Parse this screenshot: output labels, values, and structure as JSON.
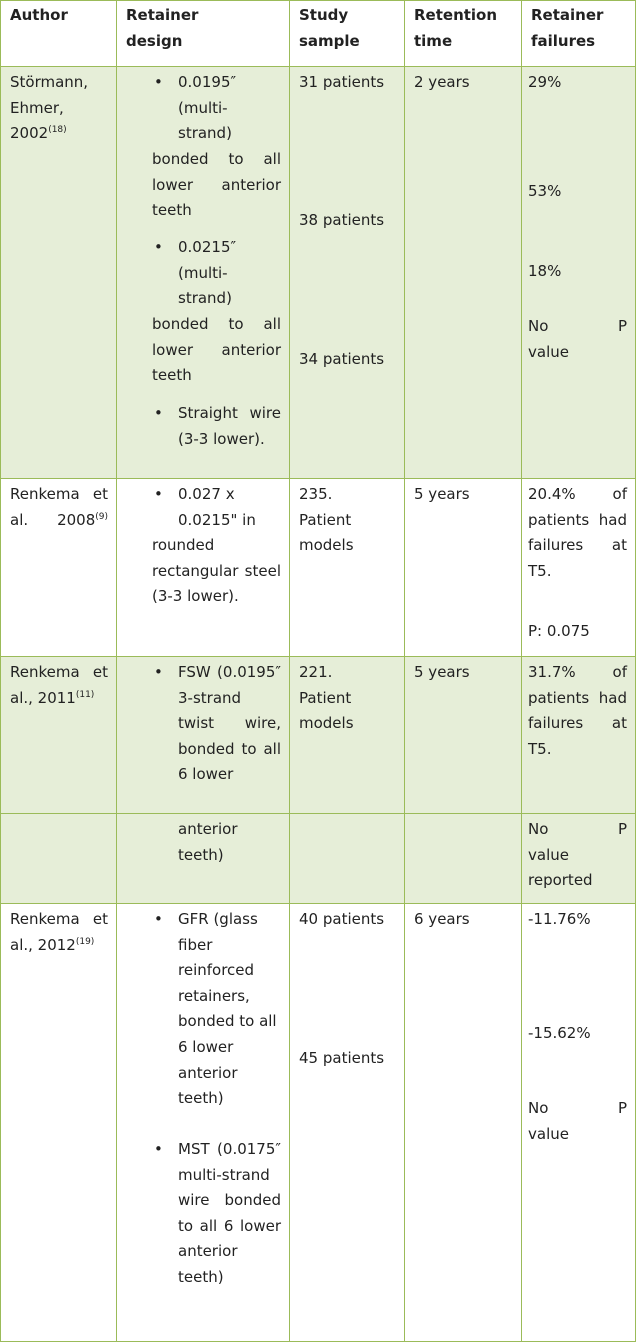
{
  "colors": {
    "border": "#9bbb59",
    "row_fill": "#e6eed8"
  },
  "headers": [
    "Author",
    "Retainer design",
    "Study sample",
    "Retention time",
    "Retainer failures"
  ],
  "rows": [
    {
      "author": "Störmann, Ehmer, 2002",
      "ref": "(18)",
      "design": [
        "0.0195″ (multi-strand)",
        "bonded to all lower anterior teeth",
        "0.0215″ (multi-strand)",
        "bonded to all lower anterior teeth",
        "Straight wire (3-3 lower)."
      ],
      "sample": [
        "31 patients",
        "38 patients",
        "34 patients"
      ],
      "time": "2 years",
      "failures": [
        "29%",
        "53%",
        "18%",
        "No P value"
      ]
    },
    {
      "author": "Renkema et al. 2008",
      "ref": "(9)",
      "design": [
        "0.027 x 0.0215\" in",
        "rounded rectangular steel (3-3 lower)."
      ],
      "sample": [
        "235. Patient models"
      ],
      "time": "5 years",
      "failures": [
        "20.4% of patients had failures at T5.",
        "P: 0.075"
      ]
    },
    {
      "author": "Renkema et al., 2011",
      "ref": "(11)",
      "design": [
        "FSW (0.0195″ 3-strand twist wire, bonded to all 6 lower",
        "anterior teeth)"
      ],
      "sample": [
        "221. Patient models"
      ],
      "time": "5 years",
      "failures": [
        "31.7% of patients had failures at T5.",
        "No P value reported"
      ]
    },
    {
      "author": "Renkema et al., 2012",
      "ref": "(19)",
      "design": [
        "GFR (glass fiber reinforced retainers, bonded to all 6 lower anterior teeth)",
        "MST (0.0175″ multi-strand wire bonded to all 6 lower anterior teeth)"
      ],
      "sample": [
        "40 patients",
        "45 patients"
      ],
      "time": "6 years",
      "failures": [
        "-11.76%",
        "-15.62%",
        "No P value"
      ]
    }
  ]
}
